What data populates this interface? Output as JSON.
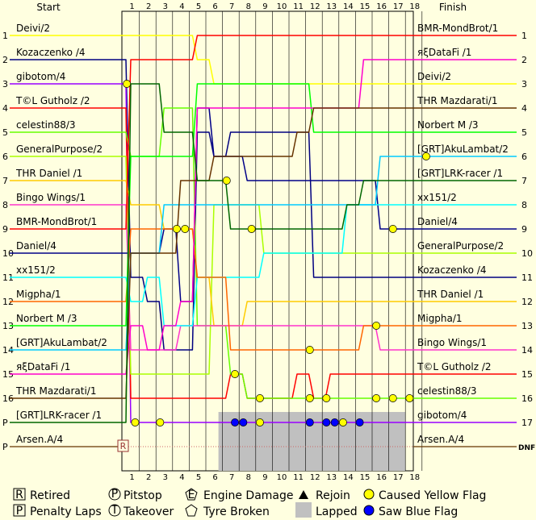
{
  "chart_data": {
    "type": "line",
    "start_header": "Start",
    "finish_header": "Finish",
    "laps": [
      1,
      2,
      3,
      4,
      5,
      6,
      7,
      8,
      9,
      10,
      11,
      12,
      13,
      14,
      15,
      16,
      17,
      18
    ],
    "start_pos_labels": [
      "1",
      "2",
      "3",
      "4",
      "5",
      "6",
      "7",
      "8",
      "9",
      "10",
      "11",
      "12",
      "13",
      "14",
      "15",
      "16",
      "P",
      "P"
    ],
    "finish_pos_labels": [
      "1",
      "2",
      "3",
      "4",
      "5",
      "6",
      "7",
      "8",
      "9",
      "10",
      "11",
      "12",
      "13",
      "14",
      "15",
      "16",
      "17",
      "DNF"
    ],
    "start_names": [
      "Deivi/2",
      "Kozaczenko /4",
      "gibotom/4",
      "T©L Gutholz /2",
      "celestin88/3",
      "GeneralPurpose/2",
      "THR Daniel /1",
      "Bingo Wings/1",
      "BMR-MondBrot/1",
      "Daniel/4",
      "xx151/2",
      "Migpha/1",
      "Norbert M /3",
      "[GRT]AkuLambat/2",
      "яξDataFi /1",
      "THR Mazdarati/1",
      "[GRT]LRK-racer /1",
      "Arsen.A/4"
    ],
    "finish_names": [
      "BMR-MondBrot/1",
      "яξDataFi /1",
      "Deivi/2",
      "THR Mazdarati/1",
      "Norbert M /3",
      "[GRT]AkuLambat/2",
      "[GRT]LRK-racer /1",
      "xx151/2",
      "Daniel/4",
      "GeneralPurpose/2",
      "Kozaczenko /4",
      "THR Daniel /1",
      "Migpha/1",
      "Bingo Wings/1",
      "T©L Gutholz /2",
      "celestin88/3",
      "gibotom/4",
      "Arsen.A/4"
    ],
    "lapped_range": [
      7,
      17
    ],
    "series": [
      {
        "name": "Deivi/2",
        "color": "#ffff00",
        "positions": [
          1,
          1,
          1,
          1,
          1,
          2,
          3,
          3,
          3,
          3,
          3,
          3,
          3,
          3,
          3,
          3,
          3,
          3,
          3
        ],
        "markers": []
      },
      {
        "name": "Kozaczenko /4",
        "color": "#000080",
        "positions": [
          2,
          11,
          12,
          14,
          14,
          5,
          6,
          5,
          5,
          5,
          5,
          5,
          11,
          11,
          11,
          11,
          11,
          11,
          11
        ],
        "markers": []
      },
      {
        "name": "gibotom/4",
        "color": "#9900ff",
        "positions": [
          3,
          17,
          17,
          17,
          17,
          17,
          17,
          17,
          17,
          17,
          17,
          17,
          17,
          17,
          17,
          17,
          17,
          17,
          17
        ],
        "markers": [
          {
            "type": "yellow",
            "lap": 0.25
          },
          {
            "type": "yellow",
            "lap": 0.75
          },
          {
            "type": "yellow",
            "lap": 2.25
          },
          {
            "type": "blue",
            "lap": 6.75
          },
          {
            "type": "blue",
            "lap": 7.25
          },
          {
            "type": "yellow",
            "lap": 8.25
          },
          {
            "type": "blue",
            "lap": 11.25
          },
          {
            "type": "blue",
            "lap": 12.25
          },
          {
            "type": "blue",
            "lap": 12.75
          },
          {
            "type": "yellow",
            "lap": 13.25
          },
          {
            "type": "blue",
            "lap": 14.25
          }
        ]
      },
      {
        "name": "T©L Gutholz /2",
        "color": "#ff0000",
        "positions": [
          4,
          16,
          16,
          16,
          16,
          16,
          16,
          15,
          16,
          16,
          16,
          15,
          16,
          15,
          15,
          15,
          15,
          15,
          15
        ],
        "markers": []
      },
      {
        "name": "celestin88/3",
        "color": "#66ff00",
        "positions": [
          5,
          6,
          6,
          4,
          4,
          13,
          13,
          15,
          16,
          16,
          16,
          16,
          16,
          16,
          16,
          16,
          16,
          16,
          16
        ],
        "markers": [
          {
            "type": "yellow",
            "lap": 6.75
          },
          {
            "type": "yellow",
            "lap": 8.25
          },
          {
            "type": "yellow",
            "lap": 11.25
          },
          {
            "type": "yellow",
            "lap": 12.25
          },
          {
            "type": "yellow",
            "lap": 15.25
          },
          {
            "type": "yellow",
            "lap": 16.25
          },
          {
            "type": "yellow",
            "lap": 17.25
          }
        ]
      },
      {
        "name": "GeneralPurpose/2",
        "color": "#aaff00",
        "positions": [
          6,
          15,
          15,
          15,
          15,
          15,
          8,
          8,
          8,
          10,
          10,
          10,
          10,
          10,
          10,
          10,
          10,
          10,
          10
        ],
        "markers": []
      },
      {
        "name": "THR Daniel /1",
        "color": "#ffcc00",
        "positions": [
          7,
          8,
          8,
          9,
          9,
          11,
          13,
          13,
          12,
          12,
          12,
          12,
          12,
          12,
          12,
          12,
          12,
          12,
          12
        ],
        "markers": [
          {
            "type": "yellow",
            "lap": 3.25
          },
          {
            "type": "yellow",
            "lap": 3.75
          }
        ]
      },
      {
        "name": "Bingo Wings/1",
        "color": "#ff33cc",
        "positions": [
          8,
          14,
          14,
          14,
          13,
          13,
          13,
          13,
          13,
          13,
          13,
          13,
          13,
          13,
          13,
          13,
          14,
          14,
          14
        ],
        "markers": [
          {
            "type": "yellow",
            "lap": 15.25
          }
        ]
      },
      {
        "name": "BMR-MondBrot/1",
        "color": "#ff0000",
        "positions": [
          9,
          2,
          2,
          2,
          2,
          1,
          1,
          1,
          1,
          1,
          1,
          1,
          1,
          1,
          1,
          1,
          1,
          1,
          1
        ],
        "markers": []
      },
      {
        "name": "Daniel/4",
        "color": "#000088",
        "positions": [
          10,
          10,
          10,
          9,
          12,
          4,
          6,
          6,
          7,
          7,
          7,
          7,
          7,
          7,
          7,
          7,
          9,
          9,
          9
        ],
        "markers": [
          {
            "type": "yellow",
            "lap": 16.25
          }
        ]
      },
      {
        "name": "xx151/2",
        "color": "#00ffff",
        "positions": [
          11,
          12,
          11,
          13,
          13,
          11,
          11,
          11,
          11,
          10,
          10,
          10,
          10,
          10,
          8,
          8,
          8,
          8,
          8
        ],
        "markers": []
      },
      {
        "name": "Migpha/1",
        "color": "#ff6600",
        "positions": [
          12,
          9,
          9,
          9,
          9,
          11,
          11,
          14,
          14,
          14,
          14,
          14,
          14,
          14,
          14,
          13,
          13,
          13,
          13
        ],
        "markers": [
          {
            "type": "yellow",
            "lap": 11.25
          }
        ]
      },
      {
        "name": "Norbert M /3",
        "color": "#00ff00",
        "positions": [
          13,
          6,
          6,
          6,
          6,
          3,
          3,
          3,
          3,
          3,
          3,
          3,
          5,
          5,
          5,
          5,
          5,
          5,
          5
        ],
        "markers": []
      },
      {
        "name": "[GRT]AkuLambat/2",
        "color": "#00ccff",
        "positions": [
          14,
          10,
          10,
          8,
          8,
          8,
          8,
          8,
          8,
          8,
          8,
          8,
          8,
          8,
          8,
          8,
          6,
          6,
          6
        ],
        "markers": [
          {
            "type": "yellow",
            "lap": 18.25
          }
        ]
      },
      {
        "name": "яξDataFi /1",
        "color": "#ff00cc",
        "positions": [
          15,
          13,
          14,
          13,
          12,
          4,
          4,
          4,
          4,
          4,
          4,
          4,
          4,
          4,
          4,
          2,
          2,
          2,
          2
        ],
        "markers": []
      },
      {
        "name": "THR Mazdarati/1",
        "color": "#663300",
        "positions": [
          16,
          10,
          10,
          10,
          7,
          7,
          6,
          6,
          6,
          6,
          6,
          5,
          4,
          4,
          4,
          4,
          4,
          4,
          4
        ],
        "markers": []
      },
      {
        "name": "[GRT]LRK-racer /1",
        "color": "#006600",
        "positions": [
          17,
          3,
          3,
          5,
          5,
          7,
          7,
          9,
          9,
          9,
          9,
          9,
          9,
          9,
          8,
          7,
          7,
          7,
          7
        ],
        "markers": [
          {
            "type": "yellow",
            "lap": 6.25
          },
          {
            "type": "yellow",
            "lap": 7.75
          }
        ]
      },
      {
        "name": "Arsen.A/4",
        "color": "#663300",
        "positions": [
          18
        ],
        "markers": [
          {
            "type": "retired",
            "lap": 0
          }
        ]
      }
    ]
  },
  "legend": {
    "retired_symbol": "R",
    "retired": "Retired",
    "pitstop_symbol": "P",
    "pitstop": "Pitstop",
    "engine_symbol": "E",
    "engine": "Engine Damage",
    "rejoin": "Rejoin",
    "yellow": "Caused Yellow Flag",
    "penalty_symbol": "P",
    "penalty": "Penalty Laps",
    "takeover_symbol": "T",
    "takeover": "Takeover",
    "tyre": "Tyre Broken",
    "lapped": "Lapped",
    "blue": "Saw Blue Flag"
  }
}
